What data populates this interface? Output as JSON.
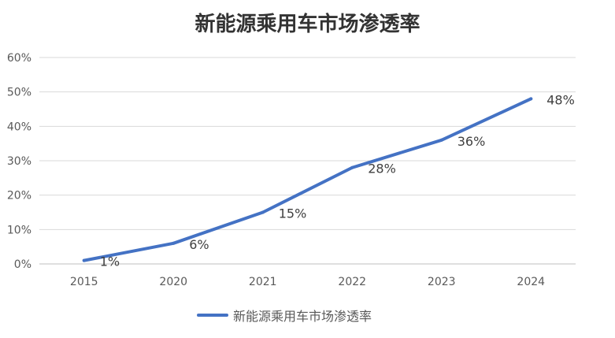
{
  "chart_data": {
    "type": "line",
    "title": "新能源乘用车市场渗透率",
    "categories": [
      "2015",
      "2020",
      "2021",
      "2022",
      "2023",
      "2024"
    ],
    "series": [
      {
        "name": "新能源乘用车市场渗透率",
        "values": [
          1,
          6,
          15,
          28,
          36,
          48
        ],
        "labels": [
          "1%",
          "6%",
          "15%",
          "28%",
          "36%",
          "48%"
        ],
        "color": "#4472C4"
      }
    ],
    "y_ticks": [
      "0%",
      "10%",
      "20%",
      "30%",
      "40%",
      "50%",
      "60%"
    ],
    "ylim": [
      0,
      60
    ],
    "grid": true,
    "legend": "bottom"
  }
}
